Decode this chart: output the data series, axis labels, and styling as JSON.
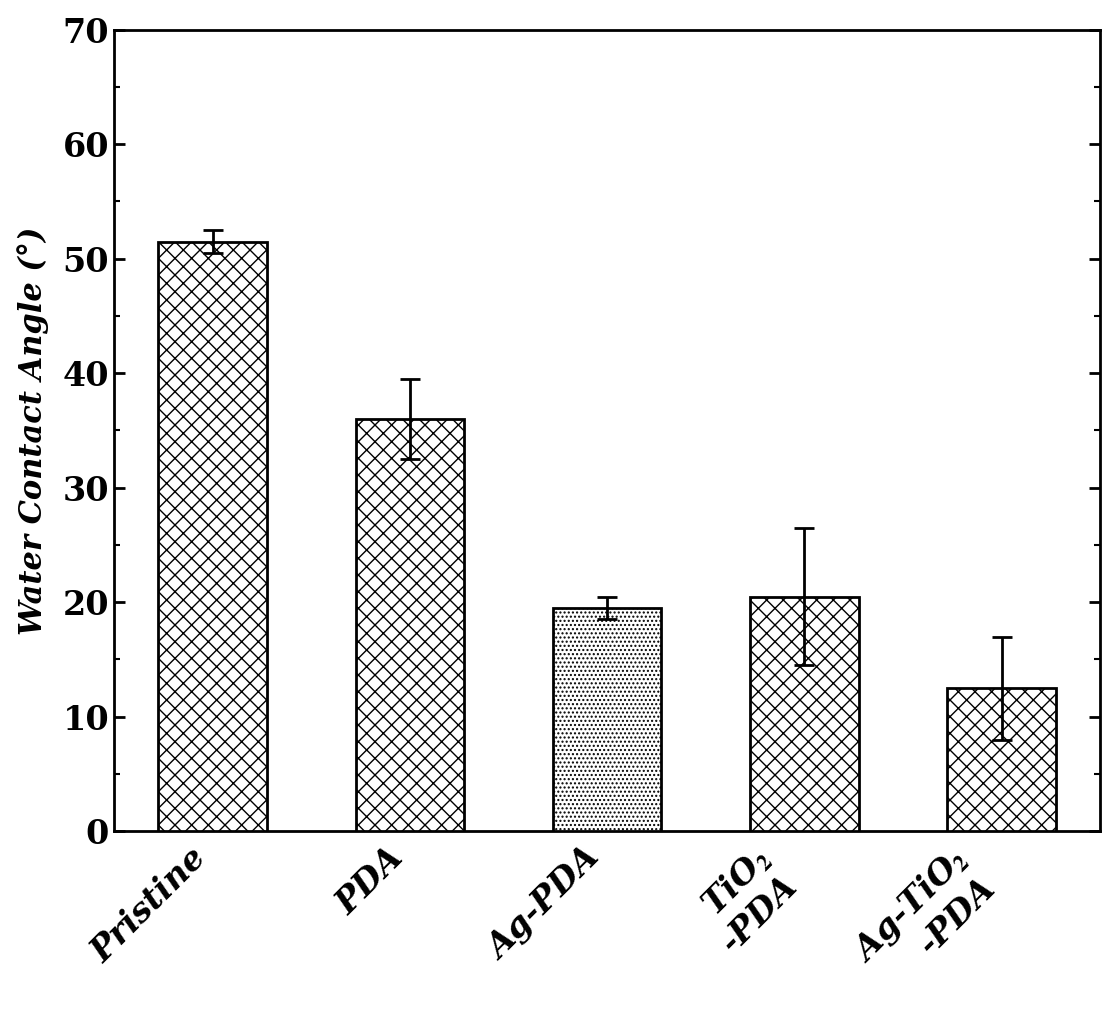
{
  "values": [
    51.5,
    36.0,
    19.5,
    20.5,
    12.5
  ],
  "errors": [
    1.0,
    3.5,
    1.0,
    6.0,
    4.5
  ],
  "ylabel": "Water Contact Angle (°)",
  "ylim": [
    0,
    70
  ],
  "yticks": [
    0,
    10,
    20,
    30,
    40,
    50,
    60,
    70
  ],
  "background_color": "#ffffff",
  "bar_edge_color": "#000000",
  "hatch_patterns": [
    "xx",
    "xx",
    "....",
    "xx",
    "xx"
  ],
  "bar_face_colors": [
    "#ffffff",
    "#ffffff",
    "#ffffff",
    "#ffffff",
    "#ffffff"
  ],
  "error_color": "#000000",
  "bar_width": 0.55,
  "label_fontsize": 24,
  "tick_fontsize": 24,
  "ylabel_fontsize": 22
}
